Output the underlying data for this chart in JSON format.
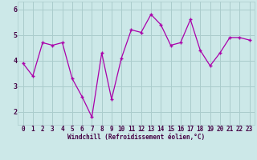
{
  "x": [
    0,
    1,
    2,
    3,
    4,
    5,
    6,
    7,
    8,
    9,
    10,
    11,
    12,
    13,
    14,
    15,
    16,
    17,
    18,
    19,
    20,
    21,
    22,
    23
  ],
  "y": [
    3.9,
    3.4,
    4.7,
    4.6,
    4.7,
    3.3,
    2.6,
    1.8,
    4.3,
    2.5,
    4.1,
    5.2,
    5.1,
    5.8,
    5.4,
    4.6,
    4.7,
    5.6,
    4.4,
    3.8,
    4.3,
    4.9,
    4.9,
    4.8
  ],
  "line_color": "#aa00aa",
  "marker": "+",
  "bg_color": "#cce8e8",
  "grid_color": "#aacccc",
  "axis_label": "Windchill (Refroidissement éolien,°C)",
  "yticks": [
    2,
    3,
    4,
    5,
    6
  ],
  "ylim": [
    1.5,
    6.3
  ],
  "xlim": [
    -0.5,
    23.5
  ],
  "tick_color": "#440044",
  "label_color": "#440044",
  "label_fontsize": 5.5,
  "tick_fontsize": 5.5,
  "markersize": 3,
  "linewidth": 0.9
}
